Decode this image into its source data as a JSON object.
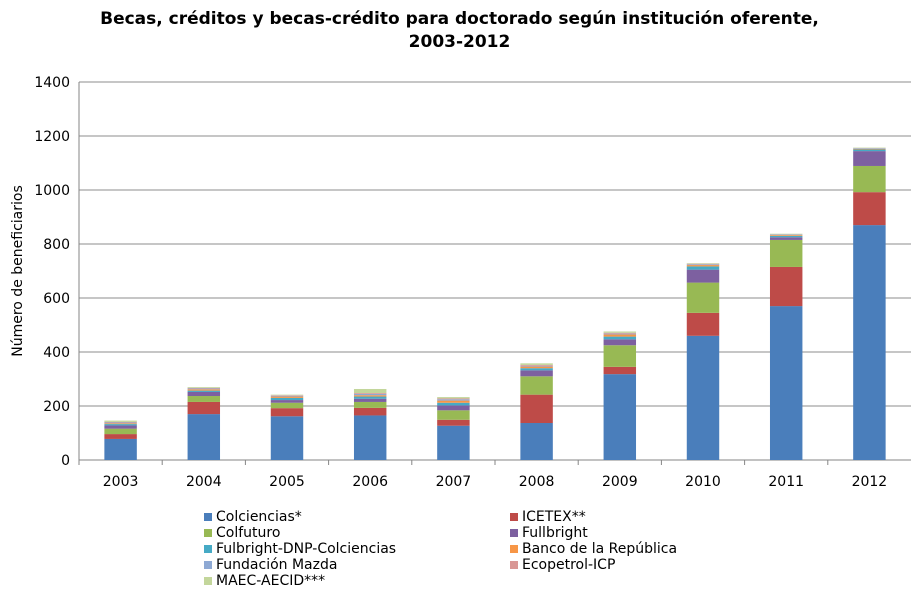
{
  "chart_data": {
    "type": "bar",
    "stacked": true,
    "title_lines": [
      "Becas, créditos y becas-crédito para doctorado según institución oferente,",
      "2003-2012"
    ],
    "xlabel": "",
    "ylabel": "Número de beneficiarios",
    "ylim": [
      0,
      1400
    ],
    "yticks": [
      "0",
      "200",
      "400",
      "600",
      "800",
      "1000",
      "1200",
      "1400"
    ],
    "grid": true,
    "legend_position": "bottom",
    "categories": [
      "2003",
      "2004",
      "2005",
      "2006",
      "2007",
      "2008",
      "2009",
      "2010",
      "2011",
      "2012"
    ],
    "series": [
      {
        "name": "Colciencias*",
        "color": "#4a7ebb",
        "values": [
          78,
          170,
          162,
          165,
          127,
          137,
          318,
          460,
          570,
          870
        ]
      },
      {
        "name": "ICETEX**",
        "color": "#be4b48",
        "values": [
          18,
          45,
          30,
          28,
          22,
          105,
          27,
          85,
          145,
          122
        ]
      },
      {
        "name": "Colfuturo",
        "color": "#98b954",
        "values": [
          20,
          22,
          20,
          22,
          35,
          68,
          80,
          112,
          100,
          97
        ]
      },
      {
        "name": "Fullbright",
        "color": "#7d60a0",
        "values": [
          12,
          15,
          10,
          12,
          18,
          22,
          22,
          48,
          10,
          55
        ]
      },
      {
        "name": "Fulbright-DNP-Colciencias",
        "color": "#46aac5",
        "values": [
          5,
          5,
          8,
          8,
          10,
          8,
          10,
          12,
          5,
          6
        ]
      },
      {
        "name": "Banco de la República",
        "color": "#f79646",
        "values": [
          3,
          5,
          5,
          5,
          8,
          6,
          8,
          5,
          3,
          2
        ]
      },
      {
        "name": "Fundación Mazda",
        "color": "#8ea9d4",
        "values": [
          3,
          3,
          3,
          5,
          5,
          3,
          3,
          3,
          2,
          2
        ]
      },
      {
        "name": "Ecopetrol-ICP",
        "color": "#d99795",
        "values": [
          2,
          2,
          2,
          3,
          3,
          3,
          3,
          2,
          1,
          1
        ]
      },
      {
        "name": "MAEC-AECID***",
        "color": "#c3d69b",
        "values": [
          5,
          3,
          2,
          15,
          5,
          6,
          5,
          2,
          2,
          2
        ]
      }
    ]
  }
}
